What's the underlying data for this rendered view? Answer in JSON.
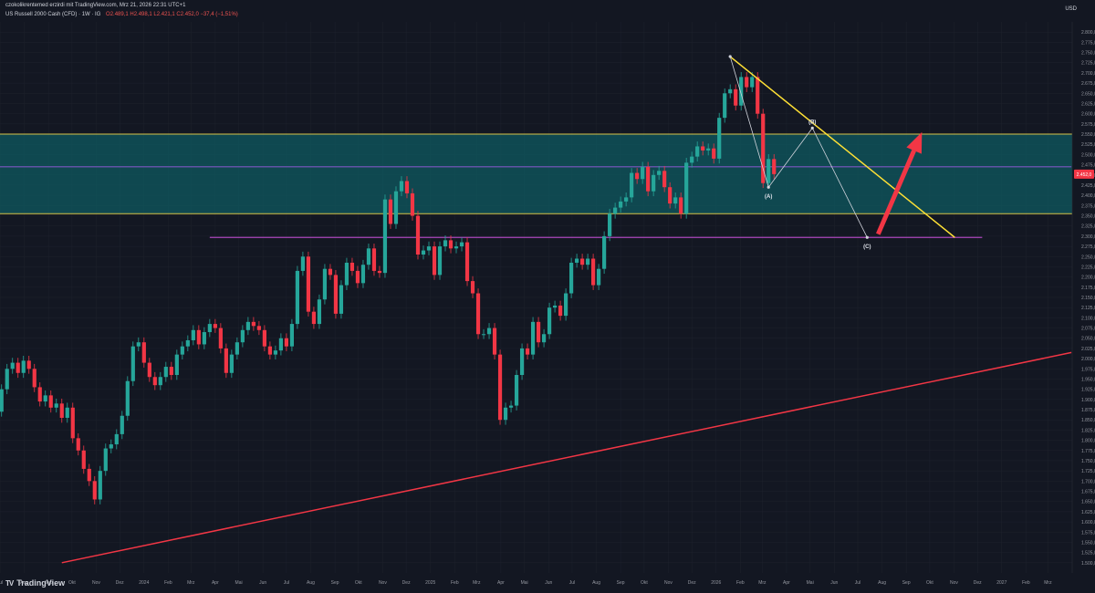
{
  "header": {
    "line1": "czokolikrentemed erzirdi mit TradingView.com, Mrz 21, 2026 22:31 UTC+1",
    "instrument": "US Russell 2000 Cash (CFD) · 1W · IG",
    "ohlc": "O2.489,1 H2.498,1 L2.421,1 C2.452,0 −37,4 (−1,51%)",
    "currency": "USD"
  },
  "brand": {
    "logo": "TV",
    "name": "TradingView"
  },
  "chart_data": {
    "type": "candlestick",
    "timeframe": "1W",
    "symbol": "US Russell 2000 Cash (CFD)",
    "ylim": [
      1475,
      2825
    ],
    "y_ticks": [
      "2.800,0",
      "2.775,0",
      "2.750,0",
      "2.725,0",
      "2.700,0",
      "2.675,0",
      "2.650,0",
      "2.625,0",
      "2.600,0",
      "2.575,0",
      "2.550,0",
      "2.525,0",
      "2.500,0",
      "2.475,0",
      "2.450,0",
      "2.425,0",
      "2.400,0",
      "2.375,0",
      "2.350,0",
      "2.325,0",
      "2.300,0",
      "2.275,0",
      "2.250,0",
      "2.225,0",
      "2.200,0",
      "2.175,0",
      "2.150,0",
      "2.125,0",
      "2.100,0",
      "2.075,0",
      "2.050,0",
      "2.025,0",
      "2.000,0",
      "1.975,0",
      "1.950,0",
      "1.925,0",
      "1.900,0",
      "1.875,0",
      "1.850,0",
      "1.825,0",
      "1.800,0",
      "1.775,0",
      "1.750,0",
      "1.725,0",
      "1.700,0",
      "1.675,0",
      "1.650,0",
      "1.625,0",
      "1.600,0",
      "1.575,0",
      "1.550,0",
      "1.525,0",
      "1.500,0"
    ],
    "x_ticks": [
      "Jul",
      "Aug",
      "Sep",
      "Okt",
      "Nov",
      "Dez",
      "2024",
      "Feb",
      "Mrz",
      "Apr",
      "Mai",
      "Jun",
      "Jul",
      "Aug",
      "Sep",
      "Okt",
      "Nov",
      "Dez",
      "2025",
      "Feb",
      "Mrz",
      "Apr",
      "Mai",
      "Jun",
      "Jul",
      "Aug",
      "Sep",
      "Okt",
      "Nov",
      "Dez",
      "2026",
      "Feb",
      "Mrz",
      "Apr",
      "Mai",
      "Jun",
      "Jul",
      "Aug",
      "Sep",
      "Okt",
      "Nov",
      "Dez",
      "2027",
      "Feb",
      "Mrz"
    ],
    "candles": [
      {
        "d": "2023-07-03",
        "o": 1870,
        "c": 1925
      },
      {
        "d": "2023-07-10",
        "o": 1925,
        "c": 1975
      },
      {
        "d": "2023-07-17",
        "o": 1975,
        "c": 1990
      },
      {
        "d": "2023-07-24",
        "o": 1990,
        "c": 1965
      },
      {
        "d": "2023-07-31",
        "o": 1965,
        "c": 1995
      },
      {
        "d": "2023-08-07",
        "o": 1995,
        "c": 1975
      },
      {
        "d": "2023-08-14",
        "o": 1975,
        "c": 1930
      },
      {
        "d": "2023-08-21",
        "o": 1930,
        "c": 1895
      },
      {
        "d": "2023-08-28",
        "o": 1895,
        "c": 1910
      },
      {
        "d": "2023-09-04",
        "o": 1910,
        "c": 1880
      },
      {
        "d": "2023-09-11",
        "o": 1880,
        "c": 1890
      },
      {
        "d": "2023-09-18",
        "o": 1890,
        "c": 1855
      },
      {
        "d": "2023-09-25",
        "o": 1855,
        "c": 1880
      },
      {
        "d": "2023-10-02",
        "o": 1880,
        "c": 1805
      },
      {
        "d": "2023-10-09",
        "o": 1805,
        "c": 1775
      },
      {
        "d": "2023-10-16",
        "o": 1775,
        "c": 1730
      },
      {
        "d": "2023-10-23",
        "o": 1730,
        "c": 1700
      },
      {
        "d": "2023-10-30",
        "o": 1700,
        "c": 1655
      },
      {
        "d": "2023-11-06",
        "o": 1655,
        "c": 1725
      },
      {
        "d": "2023-11-13",
        "o": 1725,
        "c": 1780
      },
      {
        "d": "2023-11-20",
        "o": 1780,
        "c": 1790
      },
      {
        "d": "2023-11-27",
        "o": 1790,
        "c": 1815
      },
      {
        "d": "2023-12-04",
        "o": 1815,
        "c": 1860
      },
      {
        "d": "2023-12-11",
        "o": 1860,
        "c": 1945
      },
      {
        "d": "2023-12-18",
        "o": 1945,
        "c": 2030
      },
      {
        "d": "2023-12-25",
        "o": 2030,
        "c": 2040
      },
      {
        "d": "2024-01-01",
        "o": 2040,
        "c": 1990
      },
      {
        "d": "2024-01-08",
        "o": 1990,
        "c": 1955
      },
      {
        "d": "2024-01-15",
        "o": 1955,
        "c": 1935
      },
      {
        "d": "2024-01-22",
        "o": 1935,
        "c": 1955
      },
      {
        "d": "2024-01-29",
        "o": 1955,
        "c": 1980
      },
      {
        "d": "2024-02-05",
        "o": 1980,
        "c": 1960
      },
      {
        "d": "2024-02-12",
        "o": 1960,
        "c": 2010
      },
      {
        "d": "2024-02-19",
        "o": 2010,
        "c": 2030
      },
      {
        "d": "2024-02-26",
        "o": 2030,
        "c": 2045
      },
      {
        "d": "2024-03-04",
        "o": 2045,
        "c": 2070
      },
      {
        "d": "2024-03-11",
        "o": 2070,
        "c": 2035
      },
      {
        "d": "2024-03-18",
        "o": 2035,
        "c": 2065
      },
      {
        "d": "2024-03-25",
        "o": 2065,
        "c": 2085
      },
      {
        "d": "2024-04-01",
        "o": 2085,
        "c": 2075
      },
      {
        "d": "2024-04-08",
        "o": 2075,
        "c": 2025
      },
      {
        "d": "2024-04-15",
        "o": 2025,
        "c": 1965
      },
      {
        "d": "2024-04-22",
        "o": 1965,
        "c": 2010
      },
      {
        "d": "2024-04-29",
        "o": 2010,
        "c": 2040
      },
      {
        "d": "2024-05-06",
        "o": 2040,
        "c": 2070
      },
      {
        "d": "2024-05-13",
        "o": 2070,
        "c": 2090
      },
      {
        "d": "2024-05-20",
        "o": 2090,
        "c": 2080
      },
      {
        "d": "2024-05-27",
        "o": 2080,
        "c": 2070
      },
      {
        "d": "2024-06-03",
        "o": 2070,
        "c": 2030
      },
      {
        "d": "2024-06-10",
        "o": 2030,
        "c": 2010
      },
      {
        "d": "2024-06-17",
        "o": 2010,
        "c": 2020
      },
      {
        "d": "2024-06-24",
        "o": 2020,
        "c": 2050
      },
      {
        "d": "2024-07-01",
        "o": 2050,
        "c": 2030
      },
      {
        "d": "2024-07-08",
        "o": 2030,
        "c": 2085
      },
      {
        "d": "2024-07-15",
        "o": 2085,
        "c": 2215
      },
      {
        "d": "2024-07-22",
        "o": 2215,
        "c": 2250
      },
      {
        "d": "2024-07-29",
        "o": 2250,
        "c": 2115
      },
      {
        "d": "2024-08-05",
        "o": 2115,
        "c": 2085
      },
      {
        "d": "2024-08-12",
        "o": 2085,
        "c": 2145
      },
      {
        "d": "2024-08-19",
        "o": 2145,
        "c": 2220
      },
      {
        "d": "2024-08-26",
        "o": 2220,
        "c": 2205
      },
      {
        "d": "2024-09-02",
        "o": 2205,
        "c": 2110
      },
      {
        "d": "2024-09-09",
        "o": 2110,
        "c": 2180
      },
      {
        "d": "2024-09-16",
        "o": 2180,
        "c": 2235
      },
      {
        "d": "2024-09-23",
        "o": 2235,
        "c": 2215
      },
      {
        "d": "2024-09-30",
        "o": 2215,
        "c": 2185
      },
      {
        "d": "2024-10-07",
        "o": 2185,
        "c": 2230
      },
      {
        "d": "2024-10-14",
        "o": 2230,
        "c": 2270
      },
      {
        "d": "2024-10-21",
        "o": 2270,
        "c": 2215
      },
      {
        "d": "2024-10-28",
        "o": 2215,
        "c": 2210
      },
      {
        "d": "2024-11-04",
        "o": 2210,
        "c": 2390
      },
      {
        "d": "2024-11-11",
        "o": 2390,
        "c": 2330
      },
      {
        "d": "2024-11-18",
        "o": 2330,
        "c": 2410
      },
      {
        "d": "2024-11-25",
        "o": 2410,
        "c": 2435
      },
      {
        "d": "2024-12-02",
        "o": 2435,
        "c": 2405
      },
      {
        "d": "2024-12-09",
        "o": 2405,
        "c": 2350
      },
      {
        "d": "2024-12-16",
        "o": 2350,
        "c": 2255
      },
      {
        "d": "2024-12-23",
        "o": 2255,
        "c": 2265
      },
      {
        "d": "2024-12-30",
        "o": 2265,
        "c": 2275
      },
      {
        "d": "2025-01-06",
        "o": 2275,
        "c": 2205
      },
      {
        "d": "2025-01-13",
        "o": 2205,
        "c": 2275
      },
      {
        "d": "2025-01-20",
        "o": 2275,
        "c": 2290
      },
      {
        "d": "2025-01-27",
        "o": 2290,
        "c": 2270
      },
      {
        "d": "2025-02-03",
        "o": 2270,
        "c": 2275
      },
      {
        "d": "2025-02-10",
        "o": 2275,
        "c": 2285
      },
      {
        "d": "2025-02-17",
        "o": 2285,
        "c": 2190
      },
      {
        "d": "2025-02-24",
        "o": 2190,
        "c": 2160
      },
      {
        "d": "2025-03-03",
        "o": 2160,
        "c": 2060
      },
      {
        "d": "2025-03-10",
        "o": 2060,
        "c": 2060
      },
      {
        "d": "2025-03-17",
        "o": 2060,
        "c": 2075
      },
      {
        "d": "2025-03-24",
        "o": 2075,
        "c": 2010
      },
      {
        "d": "2025-03-31",
        "o": 2010,
        "c": 1850
      },
      {
        "d": "2025-04-07",
        "o": 1850,
        "c": 1880
      },
      {
        "d": "2025-04-14",
        "o": 1880,
        "c": 1885
      },
      {
        "d": "2025-04-21",
        "o": 1885,
        "c": 1960
      },
      {
        "d": "2025-04-28",
        "o": 1960,
        "c": 2025
      },
      {
        "d": "2025-05-05",
        "o": 2025,
        "c": 2010
      },
      {
        "d": "2025-05-12",
        "o": 2010,
        "c": 2090
      },
      {
        "d": "2025-05-19",
        "o": 2090,
        "c": 2040
      },
      {
        "d": "2025-05-26",
        "o": 2040,
        "c": 2060
      },
      {
        "d": "2025-06-02",
        "o": 2060,
        "c": 2125
      },
      {
        "d": "2025-06-09",
        "o": 2125,
        "c": 2130
      },
      {
        "d": "2025-06-16",
        "o": 2130,
        "c": 2105
      },
      {
        "d": "2025-06-23",
        "o": 2105,
        "c": 2160
      },
      {
        "d": "2025-06-30",
        "o": 2160,
        "c": 2235
      },
      {
        "d": "2025-07-07",
        "o": 2235,
        "c": 2245
      },
      {
        "d": "2025-07-14",
        "o": 2245,
        "c": 2230
      },
      {
        "d": "2025-07-21",
        "o": 2230,
        "c": 2245
      },
      {
        "d": "2025-07-28",
        "o": 2245,
        "c": 2180
      },
      {
        "d": "2025-08-04",
        "o": 2180,
        "c": 2220
      },
      {
        "d": "2025-08-11",
        "o": 2220,
        "c": 2300
      },
      {
        "d": "2025-08-18",
        "o": 2300,
        "c": 2355
      },
      {
        "d": "2025-08-25",
        "o": 2355,
        "c": 2370
      },
      {
        "d": "2025-09-01",
        "o": 2370,
        "c": 2385
      },
      {
        "d": "2025-09-08",
        "o": 2385,
        "c": 2395
      },
      {
        "d": "2025-09-15",
        "o": 2395,
        "c": 2455
      },
      {
        "d": "2025-09-22",
        "o": 2455,
        "c": 2440
      },
      {
        "d": "2025-09-29",
        "o": 2440,
        "c": 2470
      },
      {
        "d": "2025-10-06",
        "o": 2470,
        "c": 2410
      },
      {
        "d": "2025-10-13",
        "o": 2410,
        "c": 2450
      },
      {
        "d": "2025-10-20",
        "o": 2450,
        "c": 2460
      },
      {
        "d": "2025-10-27",
        "o": 2460,
        "c": 2420
      },
      {
        "d": "2025-11-03",
        "o": 2420,
        "c": 2380
      },
      {
        "d": "2025-11-10",
        "o": 2380,
        "c": 2395
      },
      {
        "d": "2025-11-17",
        "o": 2395,
        "c": 2355
      },
      {
        "d": "2025-11-24",
        "o": 2355,
        "c": 2480
      },
      {
        "d": "2025-12-01",
        "o": 2480,
        "c": 2495
      },
      {
        "d": "2025-12-08",
        "o": 2495,
        "c": 2520
      },
      {
        "d": "2025-12-15",
        "o": 2520,
        "c": 2510
      },
      {
        "d": "2025-12-22",
        "o": 2510,
        "c": 2515
      },
      {
        "d": "2025-12-29",
        "o": 2515,
        "c": 2490
      },
      {
        "d": "2026-01-05",
        "o": 2490,
        "c": 2590
      },
      {
        "d": "2026-01-12",
        "o": 2590,
        "c": 2650
      },
      {
        "d": "2026-01-19",
        "o": 2650,
        "c": 2660
      },
      {
        "d": "2026-01-26",
        "o": 2660,
        "c": 2620
      },
      {
        "d": "2026-02-02",
        "o": 2620,
        "c": 2690
      },
      {
        "d": "2026-02-09",
        "o": 2690,
        "c": 2665
      },
      {
        "d": "2026-02-16",
        "o": 2665,
        "c": 2690
      },
      {
        "d": "2026-02-23",
        "o": 2690,
        "c": 2600
      },
      {
        "d": "2026-03-02",
        "o": 2600,
        "c": 2430
      },
      {
        "d": "2026-03-09",
        "o": 2430,
        "c": 2489
      },
      {
        "d": "2026-03-16",
        "o": 2489,
        "c": 2452
      }
    ],
    "zones": [
      {
        "from": 2355,
        "to": 2550,
        "fill": "#0f5960",
        "border": "#d7c54a"
      }
    ],
    "horizontal_lines": [
      {
        "y": 2470,
        "color": "#7e57c2",
        "from": "2023-07-01",
        "to": "2027-03-31"
      },
      {
        "y": 2297,
        "color": "#ab47bc",
        "from": "2024-03-25",
        "to": "2026-12-07"
      }
    ],
    "trendlines": [
      {
        "color": "#ffe135",
        "from": {
          "d": "2026-01-19",
          "y": 2740
        },
        "to": {
          "d": "2026-11-02",
          "y": 2297
        }
      },
      {
        "color": "#f23645",
        "from": {
          "d": "2023-09-18",
          "y": 1500
        },
        "to": {
          "d": "2027-03-31",
          "y": 2015
        }
      }
    ],
    "wave_path": [
      {
        "label": "",
        "d": "2026-01-19",
        "y": 2740
      },
      {
        "label": "(A)",
        "d": "2026-03-09",
        "y": 2420
      },
      {
        "label": "(B)",
        "d": "2026-05-04",
        "y": 2565
      },
      {
        "label": "(C)",
        "d": "2026-07-13",
        "y": 2297
      }
    ],
    "arrow": {
      "color": "#f23645",
      "from": {
        "d": "2026-07-27",
        "y": 2305
      },
      "to": {
        "d": "2026-09-21",
        "y": 2555
      }
    },
    "last_price_label": "2.452,0",
    "colors": {
      "up": "#26a69a",
      "down": "#f23645",
      "background": "#131722",
      "grid": "#1e222d"
    }
  }
}
